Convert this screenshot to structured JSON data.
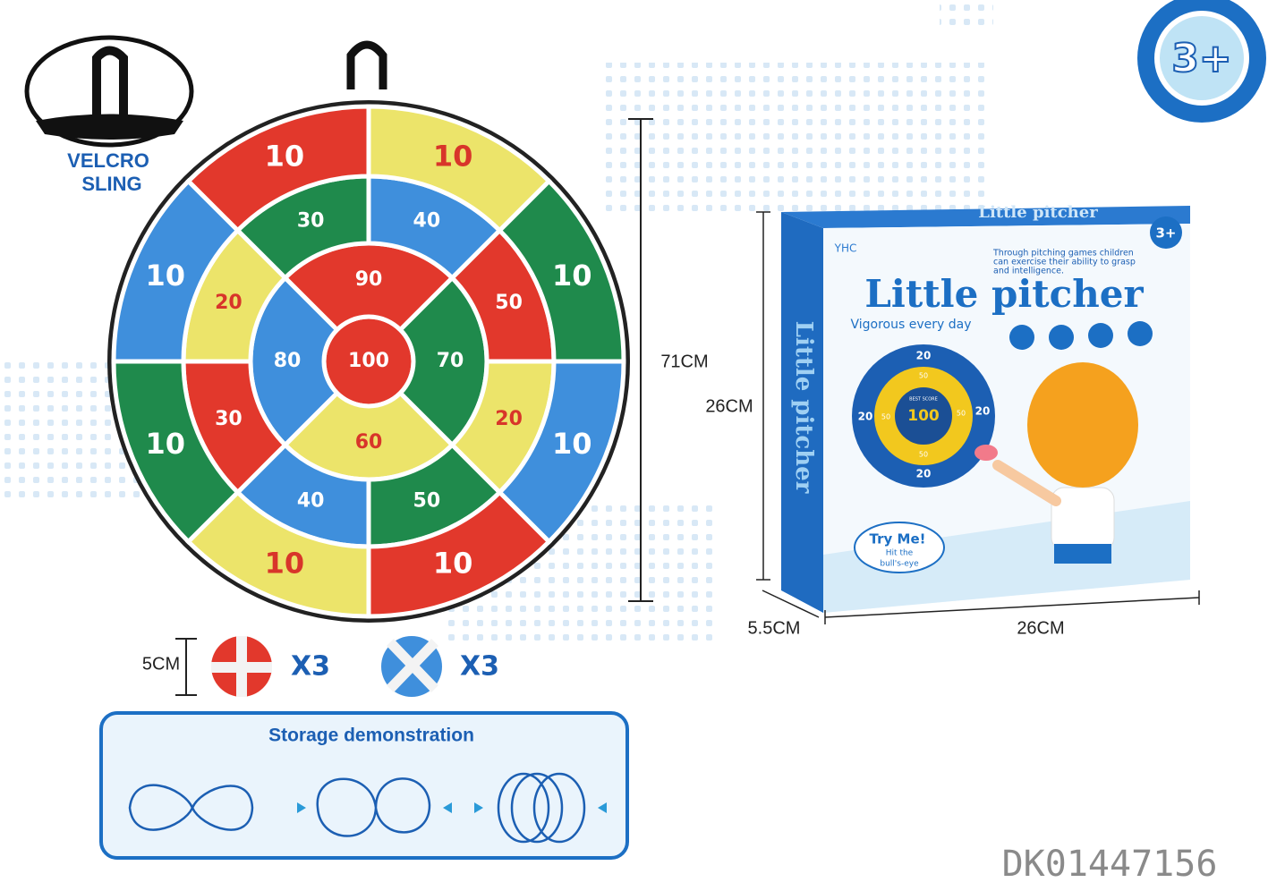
{
  "sling_label": [
    "VELCRO",
    "SLING"
  ],
  "dartboard": {
    "rings": [
      {
        "segments": [
          {
            "label": "100",
            "color": "#e2382c",
            "text": "#ffffff"
          }
        ]
      },
      {
        "segments": [
          {
            "label": "90",
            "color": "#e2382c",
            "text": "#ffffff"
          },
          {
            "label": "70",
            "color": "#1f8a4c",
            "text": "#ffffff"
          },
          {
            "label": "60",
            "color": "#ece46a",
            "text": "#d8352a"
          },
          {
            "label": "80",
            "color": "#3f8fdc",
            "text": "#ffffff"
          }
        ]
      },
      {
        "segments": [
          {
            "label": "30",
            "color": "#1f8a4c",
            "text": "#ffffff"
          },
          {
            "label": "40",
            "color": "#3f8fdc",
            "text": "#ffffff"
          },
          {
            "label": "50",
            "color": "#e2382c",
            "text": "#ffffff"
          },
          {
            "label": "20",
            "color": "#ece46a",
            "text": "#d8352a"
          },
          {
            "label": "50",
            "color": "#1f8a4c",
            "text": "#ffffff"
          },
          {
            "label": "40",
            "color": "#3f8fdc",
            "text": "#ffffff"
          },
          {
            "label": "30",
            "color": "#e2382c",
            "text": "#ffffff"
          },
          {
            "label": "20",
            "color": "#ece46a",
            "text": "#d8352a"
          }
        ]
      },
      {
        "segments": [
          {
            "label": "10",
            "color": "#e2382c",
            "text": "#ffffff"
          },
          {
            "label": "10",
            "color": "#ece46a",
            "text": "#d8352a"
          },
          {
            "label": "10",
            "color": "#1f8a4c",
            "text": "#ffffff"
          },
          {
            "label": "10",
            "color": "#3f8fdc",
            "text": "#ffffff"
          },
          {
            "label": "10",
            "color": "#e2382c",
            "text": "#ffffff"
          },
          {
            "label": "10",
            "color": "#ece46a",
            "text": "#d8352a"
          },
          {
            "label": "10",
            "color": "#1f8a4c",
            "text": "#ffffff"
          },
          {
            "label": "10",
            "color": "#3f8fdc",
            "text": "#ffffff"
          }
        ]
      }
    ]
  },
  "board_size": "71CM",
  "ball_size": "5CM",
  "balls": [
    {
      "count": "X3"
    },
    {
      "count": "X3"
    }
  ],
  "storage": {
    "title": "Storage demonstration"
  },
  "age_badge": "3+",
  "box": {
    "brand": "YHC",
    "side_title": "Little pitcher",
    "top_title": "Little pitcher",
    "age": "3+",
    "description": [
      "Through pitching games children",
      "can exercise their ability to grasp",
      "and intelligence."
    ],
    "title": "Little pitcher",
    "subtitle": "Vigorous every day",
    "target": {
      "best_score_label": "BEST SCORE",
      "center": "100",
      "outer": [
        "20",
        "20",
        "20",
        "20"
      ],
      "inner": [
        "50",
        "50",
        "50",
        "50"
      ]
    },
    "callout": [
      "Try Me!",
      "Hit the",
      "bull's-eye"
    ],
    "height": "26CM",
    "depth": "5.5CM",
    "width": "26CM"
  },
  "item_code": "DK01447156"
}
